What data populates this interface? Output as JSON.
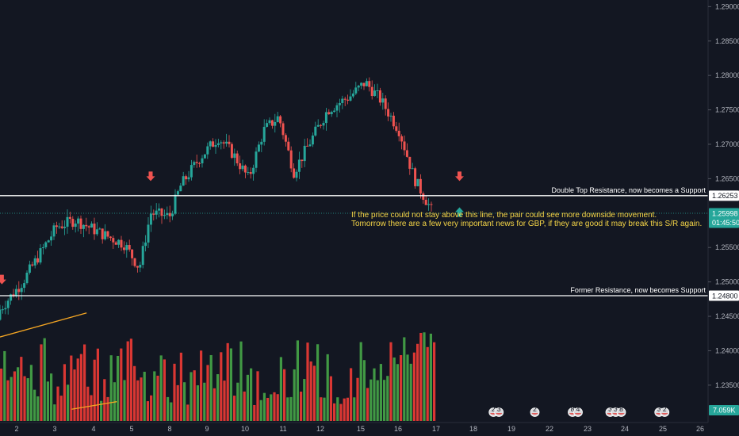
{
  "chart_data": {
    "type": "candlestick",
    "colors": {
      "up": "#26a69a",
      "down": "#ef5350",
      "vol_up": "#43a047",
      "vol_down": "#e53935",
      "trend": "#f5a623",
      "note": "#f5d547",
      "bg": "#131722"
    },
    "y_axis": {
      "ylim": [
        1.2298,
        1.2905
      ],
      "ticks": [
        "1.29000",
        "1.28500",
        "1.28000",
        "1.27500",
        "1.27000",
        "1.26500",
        "1.25500",
        "1.25000",
        "1.24500",
        "1.24000",
        "1.23500"
      ]
    },
    "x_axis": {
      "ticks": [
        "2",
        "3",
        "4",
        "5",
        "8",
        "9",
        "10",
        "11",
        "12",
        "15",
        "16",
        "17",
        "18",
        "19",
        "22",
        "23",
        "24",
        "25",
        "26"
      ]
    },
    "horizontal_lines": [
      {
        "price": 1.26253,
        "price_label": "1.26253",
        "text": "Double Top Resistance, now becomes a Support"
      },
      {
        "price": 1.248,
        "price_label": "1.24800",
        "text": "Former Resistance, now becomes Support"
      }
    ],
    "current_price": {
      "price": 1.25998,
      "label": "1.25998",
      "countdown": "01:45:50"
    },
    "volume_label": "7.059K",
    "annotations": [
      "If the price could not stay above this line, the pair could see more downside movement.",
      "Tomorrow there are a few very important news for GBP, if they are good it may break this S/R again."
    ],
    "arrows": [
      {
        "kind": "down",
        "color": "#ef5350",
        "day": 1.05,
        "price": 1.25
      },
      {
        "kind": "down",
        "color": "#ef5350",
        "day": 5.0,
        "price": 1.265
      },
      {
        "kind": "down",
        "color": "#ef5350",
        "day": 13.2,
        "price": 1.265
      },
      {
        "kind": "up",
        "color": "#26a69a",
        "day": 13.2,
        "price": 1.2605
      }
    ],
    "event_badges": [
      {
        "day": 14.1,
        "labels": [
          "2",
          "3"
        ]
      },
      {
        "day": 15.2,
        "labels": [
          "2"
        ]
      },
      {
        "day": 16.2,
        "labels": [
          "8",
          "4"
        ]
      },
      {
        "day": 17.2,
        "labels": [
          "3",
          "3",
          "8"
        ]
      },
      {
        "day": 18.5,
        "labels": [
          "3",
          "2"
        ]
      }
    ],
    "key_prices": [
      {
        "day": 1.0,
        "price": 1.246
      },
      {
        "day": 1.6,
        "price": 1.25
      },
      {
        "day": 2.5,
        "price": 1.258
      },
      {
        "day": 3.0,
        "price": 1.259
      },
      {
        "day": 3.7,
        "price": 1.257
      },
      {
        "day": 4.3,
        "price": 1.2555
      },
      {
        "day": 4.7,
        "price": 1.252
      },
      {
        "day": 5.0,
        "price": 1.26
      },
      {
        "day": 5.5,
        "price": 1.2595
      },
      {
        "day": 5.8,
        "price": 1.264
      },
      {
        "day": 6.3,
        "price": 1.268
      },
      {
        "day": 6.8,
        "price": 1.271
      },
      {
        "day": 7.2,
        "price": 1.2685
      },
      {
        "day": 7.6,
        "price": 1.265
      },
      {
        "day": 8.0,
        "price": 1.272
      },
      {
        "day": 8.4,
        "price": 1.274
      },
      {
        "day": 8.8,
        "price": 1.266
      },
      {
        "day": 9.2,
        "price": 1.27
      },
      {
        "day": 9.7,
        "price": 1.275
      },
      {
        "day": 10.3,
        "price": 1.277
      },
      {
        "day": 10.7,
        "price": 1.279
      },
      {
        "day": 11.1,
        "price": 1.2765
      },
      {
        "day": 11.6,
        "price": 1.272
      },
      {
        "day": 12.0,
        "price": 1.265
      },
      {
        "day": 12.3,
        "price": 1.262
      },
      {
        "day": 12.5,
        "price": 1.26
      }
    ]
  }
}
